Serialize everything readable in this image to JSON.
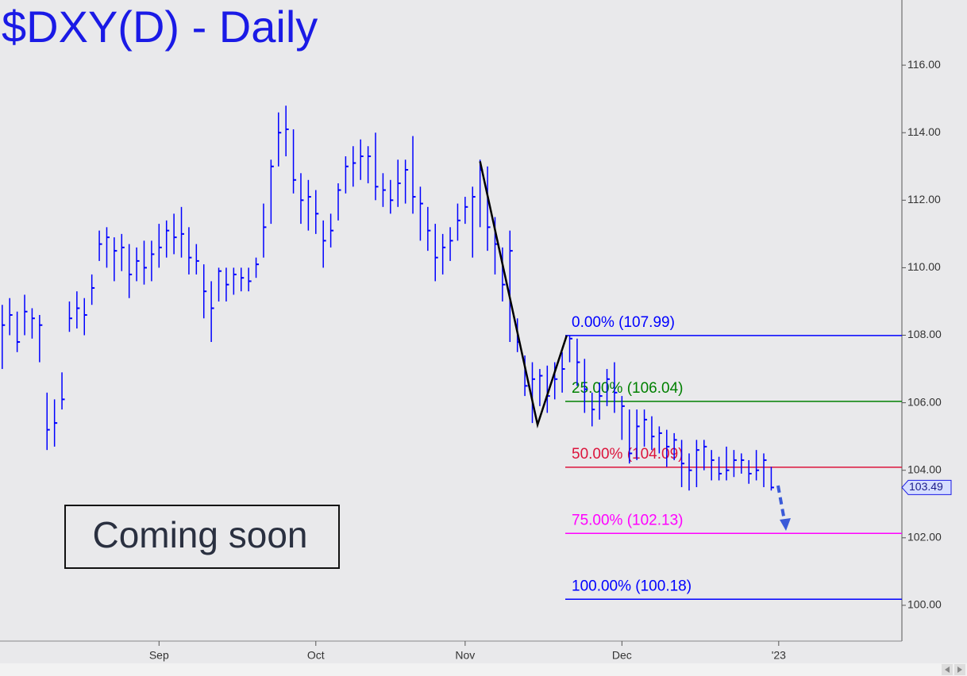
{
  "chart_data": {
    "type": "ohlc",
    "title": "$DXY(D) - Daily",
    "color": "#0000ff",
    "high": [
      108.9,
      109.1,
      108.7,
      109.2,
      108.8,
      108.6,
      106.3,
      106.1,
      106.9,
      109.0,
      109.3,
      109.1,
      109.8,
      111.1,
      111.2,
      110.9,
      111.0,
      110.7,
      110.6,
      110.8,
      110.8,
      111.3,
      111.4,
      111.6,
      111.8,
      111.2,
      110.7,
      110.1,
      109.6,
      110.0,
      110.0,
      110.0,
      110.0,
      110.0,
      110.3,
      111.9,
      113.2,
      114.6,
      114.8,
      114.1,
      112.8,
      112.6,
      112.3,
      111.4,
      111.6,
      112.5,
      113.3,
      113.6,
      113.8,
      113.6,
      114.0,
      112.8,
      112.6,
      113.2,
      113.2,
      113.9,
      112.4,
      111.8,
      111.3,
      111.0,
      111.2,
      111.9,
      112.1,
      112.4,
      113.2,
      113.0,
      111.5,
      110.6,
      111.1,
      108.5,
      107.4,
      107.2,
      107.0,
      107.1,
      107.2,
      107.5,
      108.0,
      107.9,
      107.3,
      106.3,
      106.6,
      107.0,
      107.2,
      106.2,
      105.8,
      105.8,
      105.8,
      105.6,
      105.3,
      105.2,
      105.1,
      104.9,
      104.5,
      104.9,
      104.9,
      104.6,
      104.4,
      104.7,
      104.6,
      104.5,
      104.3,
      104.6,
      104.5,
      104.1
    ],
    "low": [
      107.0,
      108.0,
      107.5,
      108.0,
      107.9,
      107.2,
      104.6,
      104.7,
      105.8,
      108.1,
      108.2,
      108.0,
      108.9,
      110.2,
      110.0,
      109.6,
      109.9,
      109.1,
      109.6,
      109.5,
      109.6,
      110.0,
      110.3,
      110.4,
      110.3,
      109.8,
      109.8,
      108.5,
      107.8,
      109.0,
      109.0,
      109.2,
      109.3,
      109.3,
      109.7,
      110.3,
      111.3,
      113.0,
      113.3,
      112.2,
      111.3,
      111.1,
      111.0,
      110.0,
      110.6,
      111.4,
      112.2,
      112.4,
      112.6,
      112.5,
      112.0,
      111.8,
      111.6,
      111.8,
      111.9,
      111.6,
      110.8,
      110.5,
      109.6,
      109.8,
      110.2,
      110.8,
      111.3,
      110.3,
      111.2,
      110.5,
      109.8,
      109.0,
      107.8,
      107.5,
      106.2,
      105.4,
      105.9,
      105.7,
      106.1,
      106.3,
      107.2,
      106.5,
      105.7,
      105.3,
      105.5,
      105.9,
      105.7,
      104.9,
      104.2,
      104.3,
      104.7,
      104.6,
      104.5,
      104.1,
      104.3,
      103.5,
      103.4,
      103.5,
      104.0,
      103.7,
      103.7,
      103.7,
      103.8,
      103.9,
      103.6,
      103.7,
      103.5,
      103.4
    ],
    "close": [
      108.3,
      108.6,
      107.8,
      108.7,
      108.5,
      108.3,
      105.2,
      105.4,
      106.1,
      108.5,
      108.8,
      108.6,
      109.4,
      110.7,
      110.9,
      110.5,
      110.6,
      109.8,
      110.2,
      110.0,
      110.4,
      110.6,
      111.1,
      110.9,
      111.0,
      110.3,
      110.2,
      109.3,
      108.8,
      109.9,
      109.5,
      109.8,
      109.7,
      109.6,
      110.1,
      111.2,
      113.0,
      114.0,
      114.1,
      112.6,
      112.0,
      112.1,
      111.6,
      110.8,
      111.1,
      112.3,
      113.0,
      113.1,
      113.3,
      113.3,
      112.4,
      112.3,
      112.0,
      112.5,
      112.9,
      112.1,
      111.9,
      111.1,
      110.3,
      110.6,
      110.8,
      111.4,
      111.8,
      112.1,
      112.9,
      111.2,
      110.7,
      109.5,
      110.5,
      107.8,
      106.5,
      106.7,
      106.8,
      106.2,
      106.7,
      107.0,
      107.9,
      107.2,
      106.4,
      105.8,
      106.2,
      106.7,
      106.3,
      105.9,
      104.5,
      105.3,
      105.5,
      105.0,
      105.1,
      104.7,
      104.9,
      104.2,
      104.0,
      104.6,
      104.7,
      104.3,
      103.9,
      104.0,
      104.3,
      104.3,
      103.9,
      104.0,
      104.3,
      103.49
    ],
    "xlim": [
      -0.3,
      120.5
    ],
    "xticks": [
      {
        "value": 21,
        "label": "Sep"
      },
      {
        "value": 42,
        "label": "Oct"
      },
      {
        "value": 62,
        "label": "Nov"
      },
      {
        "value": 83,
        "label": "Dec"
      },
      {
        "value": 104,
        "label": "'23"
      }
    ],
    "ylim": [
      98.94,
      117.93
    ],
    "yticks": [
      {
        "value": 100,
        "label": "100.00"
      },
      {
        "value": 102,
        "label": "102.00"
      },
      {
        "value": 104,
        "label": "104.00"
      },
      {
        "value": 106,
        "label": "106.00"
      },
      {
        "value": 108,
        "label": "108.00"
      },
      {
        "value": 110,
        "label": "110.00"
      },
      {
        "value": 112,
        "label": "112.00"
      },
      {
        "value": 114,
        "label": "114.00"
      },
      {
        "value": 116,
        "label": "116.00"
      }
    ],
    "fib_levels": [
      {
        "label": "0.00% (107.99)",
        "value": 107.99,
        "color": "#0000ff"
      },
      {
        "label": "25.00% (106.04)",
        "value": 106.04,
        "color": "#008000"
      },
      {
        "label": "50.00% (104.09)",
        "value": 104.09,
        "color": "#dc143c"
      },
      {
        "label": "75.00% (102.13)",
        "value": 102.13,
        "color": "#ff00ff"
      },
      {
        "label": "100.00% (100.18)",
        "value": 100.18,
        "color": "#0000ff"
      }
    ],
    "pivots": {
      "x": [
        64,
        71.7,
        75.6
      ],
      "y": [
        113.15,
        105.35,
        107.99
      ],
      "color": "#000000"
    },
    "annotation": "Coming soon"
  }
}
